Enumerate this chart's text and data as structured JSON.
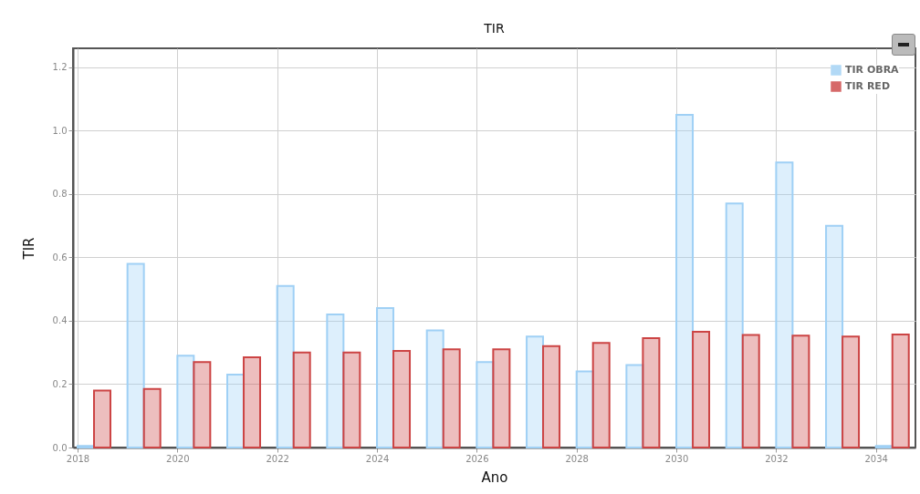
{
  "chart_data": {
    "type": "bar",
    "title": "TIR",
    "xlabel": "Ano",
    "ylabel": "TIR",
    "x": [
      2018,
      2019,
      2020,
      2021,
      2022,
      2023,
      2024,
      2025,
      2026,
      2027,
      2028,
      2029,
      2030,
      2031,
      2032,
      2033,
      2034
    ],
    "series": [
      {
        "name": "TIR OBRA",
        "color": "#9fd0f5",
        "values": [
          0.005,
          0.58,
          0.29,
          0.23,
          0.51,
          0.42,
          0.44,
          0.37,
          0.27,
          0.35,
          0.24,
          0.26,
          1.05,
          0.77,
          0.9,
          0.7,
          0.005
        ]
      },
      {
        "name": "TIR RED",
        "color": "#cc4444",
        "values": [
          0.18,
          0.185,
          0.27,
          0.285,
          0.3,
          0.3,
          0.305,
          0.31,
          0.31,
          0.32,
          0.33,
          0.345,
          0.365,
          0.355,
          0.353,
          0.35,
          0.357
        ]
      }
    ],
    "xlim": [
      2018,
      2034.7
    ],
    "xticks": [
      2018,
      2020,
      2022,
      2024,
      2026,
      2028,
      2030,
      2032,
      2034
    ],
    "ylim": [
      0,
      1.26
    ],
    "yticks": [
      {
        "value": 0,
        "label": "0.0"
      },
      0.2,
      0.4,
      0.6,
      0.8,
      {
        "value": 1,
        "label": "1.0"
      },
      1.2
    ],
    "grid": true,
    "legend": "top right"
  }
}
